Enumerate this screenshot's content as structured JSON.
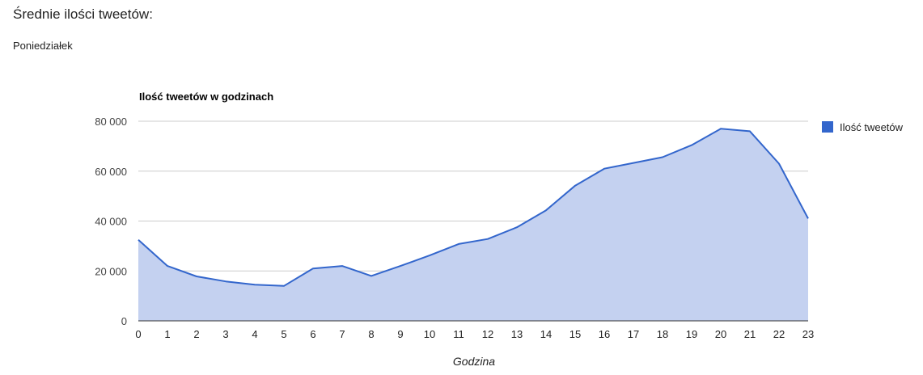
{
  "header": {
    "title": "Średnie ilości tweetów:",
    "subtitle": "Poniedziałek"
  },
  "chart_data": {
    "type": "area",
    "title": "Ilość tweetów w godzinach",
    "xlabel": "Godzina",
    "ylabel": "",
    "x": [
      0,
      1,
      2,
      3,
      4,
      5,
      6,
      7,
      8,
      9,
      10,
      11,
      12,
      13,
      14,
      15,
      16,
      17,
      18,
      19,
      20,
      21,
      22,
      23
    ],
    "series": [
      {
        "name": "Ilość tweetów",
        "values": [
          32500,
          22000,
          17800,
          15800,
          14500,
          14000,
          21000,
          22000,
          18000,
          22000,
          26200,
          30800,
          32800,
          37500,
          44300,
          54200,
          61000,
          63300,
          65600,
          70400,
          77000,
          76000,
          63000,
          41000
        ]
      }
    ],
    "ylim": [
      0,
      80000
    ],
    "yticks": [
      0,
      20000,
      40000,
      60000,
      80000
    ],
    "ytick_labels": [
      "0",
      "20 000",
      "40 000",
      "60 000",
      "80 000"
    ],
    "grid": true,
    "legend_position": "right",
    "colors": {
      "line": "#3366cc",
      "fill": "#c4d1f0",
      "grid": "#cccccc",
      "baseline": "#333333"
    }
  }
}
